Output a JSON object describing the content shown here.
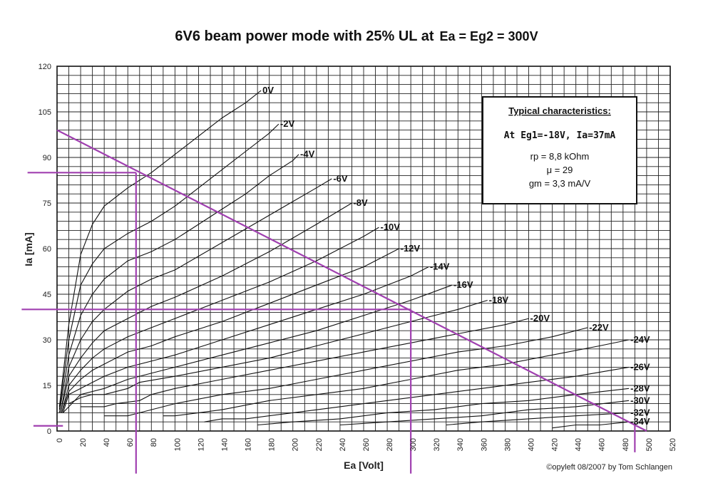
{
  "chart_data": {
    "type": "line",
    "title_main": "6V6 beam power mode with 25% UL at",
    "title_cond": "Ea = Eg2 = 300V",
    "xlabel": "Ea [Volt]",
    "ylabel": "Ia [mA]",
    "xlim": [
      0,
      520
    ],
    "ylim": [
      0,
      120
    ],
    "x_ticks": [
      "0",
      "20",
      "40",
      "60",
      "80",
      "100",
      "120",
      "140",
      "160",
      "180",
      "200",
      "220",
      "240",
      "260",
      "280",
      "300",
      "320",
      "340",
      "360",
      "380",
      "400",
      "420",
      "440",
      "460",
      "480",
      "500",
      "520"
    ],
    "y_ticks": [
      "0",
      "15",
      "30",
      "45",
      "60",
      "75",
      "90",
      "105",
      "120"
    ],
    "x_tick_values": [
      0,
      20,
      40,
      60,
      80,
      100,
      120,
      140,
      160,
      180,
      200,
      220,
      240,
      260,
      280,
      300,
      320,
      340,
      360,
      380,
      400,
      420,
      440,
      460,
      480,
      500,
      520
    ],
    "y_tick_values": [
      0,
      15,
      30,
      45,
      60,
      75,
      90,
      105,
      120
    ],
    "grid": true,
    "series": [
      {
        "name": "0V",
        "label": "0V",
        "x": [
          2,
          10,
          20,
          30,
          40,
          60,
          80,
          100,
          120,
          140,
          160,
          173
        ],
        "y": [
          8,
          35,
          58,
          68,
          74,
          80,
          85,
          91,
          97,
          103,
          108,
          112
        ]
      },
      {
        "name": "-2V",
        "label": "-2V",
        "x": [
          2,
          10,
          20,
          30,
          40,
          60,
          80,
          100,
          120,
          140,
          160,
          180,
          188
        ],
        "y": [
          7,
          30,
          48,
          55,
          60,
          65,
          69,
          74,
          80,
          86,
          92,
          98,
          101
        ]
      },
      {
        "name": "-4V",
        "label": "-4V",
        "x": [
          2,
          10,
          20,
          30,
          40,
          60,
          80,
          100,
          120,
          140,
          160,
          180,
          200,
          205
        ],
        "y": [
          6,
          25,
          38,
          45,
          50,
          56,
          59,
          63,
          68,
          73,
          78,
          84,
          89,
          91
        ]
      },
      {
        "name": "-6V",
        "label": "-6V",
        "x": [
          3,
          10,
          20,
          30,
          40,
          60,
          80,
          100,
          140,
          180,
          220,
          233
        ],
        "y": [
          6,
          21,
          30,
          36,
          40,
          46,
          50,
          53,
          62,
          71,
          80,
          83
        ]
      },
      {
        "name": "-8V",
        "label": "-8V",
        "x": [
          3,
          10,
          20,
          30,
          40,
          60,
          80,
          100,
          140,
          180,
          220,
          250
        ],
        "y": [
          6,
          18,
          24,
          29,
          33,
          37,
          41,
          44,
          51,
          59,
          68,
          75
        ]
      },
      {
        "name": "-10V",
        "label": "-10V",
        "x": [
          4,
          10,
          20,
          30,
          40,
          60,
          80,
          100,
          140,
          180,
          220,
          260,
          273
        ],
        "y": [
          6,
          15,
          20,
          24,
          27,
          31,
          34,
          37,
          43,
          49,
          56,
          64,
          67
        ]
      },
      {
        "name": "-12V",
        "label": "-12V",
        "x": [
          4,
          10,
          20,
          30,
          40,
          60,
          80,
          100,
          140,
          180,
          220,
          260,
          290
        ],
        "y": [
          6,
          13,
          17,
          20,
          22,
          26,
          28,
          31,
          36,
          42,
          48,
          54,
          60
        ]
      },
      {
        "name": "-14V",
        "label": "-14V",
        "x": [
          5,
          10,
          20,
          30,
          40,
          60,
          80,
          100,
          140,
          180,
          220,
          260,
          300,
          315
        ],
        "y": [
          6,
          12,
          14,
          16,
          18,
          21,
          23,
          25,
          30,
          35,
          40,
          45,
          51,
          54
        ]
      },
      {
        "name": "-16V",
        "label": "-16V",
        "x": [
          5,
          20,
          40,
          60,
          80,
          100,
          140,
          180,
          220,
          260,
          300,
          335
        ],
        "y": [
          6,
          12,
          14,
          17,
          19,
          21,
          25,
          29,
          33,
          38,
          43,
          48
        ]
      },
      {
        "name": "-18V",
        "label": "-18V",
        "x": [
          10,
          20,
          30,
          40,
          60,
          70,
          100,
          140,
          180,
          220,
          260,
          300,
          340,
          365
        ],
        "y": [
          9,
          11,
          12,
          12,
          14,
          16,
          18,
          21,
          24,
          28,
          32,
          36,
          40,
          43
        ]
      },
      {
        "name": "-20V",
        "label": "-20V",
        "x": [
          20,
          30,
          40,
          50,
          70,
          80,
          100,
          140,
          180,
          220,
          260,
          300,
          340,
          380,
          400
        ],
        "y": [
          8,
          8,
          8,
          9,
          10,
          12,
          14,
          17,
          20,
          23,
          26,
          29,
          32,
          35,
          37
        ]
      },
      {
        "name": "-22V",
        "label": "-22V",
        "x": [
          40,
          50,
          60,
          70,
          80,
          100,
          140,
          180,
          220,
          260,
          300,
          340,
          380,
          420,
          450
        ],
        "y": [
          5,
          5,
          5,
          6,
          7,
          9,
          12,
          14,
          17,
          20,
          23,
          26,
          28,
          31,
          34
        ]
      },
      {
        "name": "-24V",
        "label": "-24V",
        "x": [
          90,
          100,
          120,
          140,
          180,
          220,
          260,
          300,
          340,
          380,
          420,
          460,
          485
        ],
        "y": [
          5,
          5,
          6,
          7,
          10,
          12,
          14,
          17,
          20,
          22,
          25,
          28,
          30
        ]
      },
      {
        "name": "-26V",
        "label": "-26V",
        "x": [
          125,
          140,
          160,
          200,
          240,
          280,
          320,
          360,
          400,
          440,
          485
        ],
        "y": [
          3,
          4,
          4,
          6,
          8,
          10,
          12,
          14,
          16,
          18,
          21
        ]
      },
      {
        "name": "-28V",
        "label": "-28V",
        "x": [
          170,
          200,
          240,
          280,
          320,
          360,
          400,
          440,
          485
        ],
        "y": [
          2,
          3,
          4,
          6,
          7,
          9,
          10,
          12,
          14
        ]
      },
      {
        "name": "-30V",
        "label": "-30V",
        "x": [
          240,
          280,
          320,
          360,
          400,
          440,
          485
        ],
        "y": [
          2,
          3,
          4,
          5,
          7,
          8,
          10
        ]
      },
      {
        "name": "-32V",
        "label": "-32V",
        "x": [
          330,
          360,
          400,
          440,
          485
        ],
        "y": [
          2,
          3,
          4,
          5,
          6
        ]
      },
      {
        "name": "-34V",
        "label": "-34V",
        "x": [
          420,
          440,
          460,
          485
        ],
        "y": [
          1,
          2,
          2,
          3
        ]
      }
    ],
    "load_line": {
      "x": [
        0,
        500
      ],
      "y": [
        99,
        0
      ]
    },
    "reference_lines": [
      {
        "from": [
          -25,
          85
        ],
        "to": [
          67,
          85
        ]
      },
      {
        "from": [
          67,
          85
        ],
        "to": [
          67,
          -14
        ]
      },
      {
        "from": [
          -30,
          40
        ],
        "to": [
          300,
          40
        ]
      },
      {
        "from": [
          300,
          40
        ],
        "to": [
          300,
          -14
        ]
      },
      {
        "from": [
          -20,
          1.7
        ],
        "to": [
          5,
          1.7
        ]
      },
      {
        "from": [
          490,
          2.5
        ],
        "to": [
          490,
          -7
        ]
      }
    ],
    "legend_box": {
      "heading": "Typical characteristics:",
      "operating_point": "At Eg1=-18V, Ia=37mA",
      "rp": "rp =  8,8 kOhm",
      "mu": "μ = 29",
      "gm": "gm = 3,3 mA/V"
    },
    "copyright": "©opyleft 08/2007 by Tom Schlangen",
    "colors": {
      "grid": "#222222",
      "curve": "#111111",
      "loadline": "#a040b0"
    }
  }
}
